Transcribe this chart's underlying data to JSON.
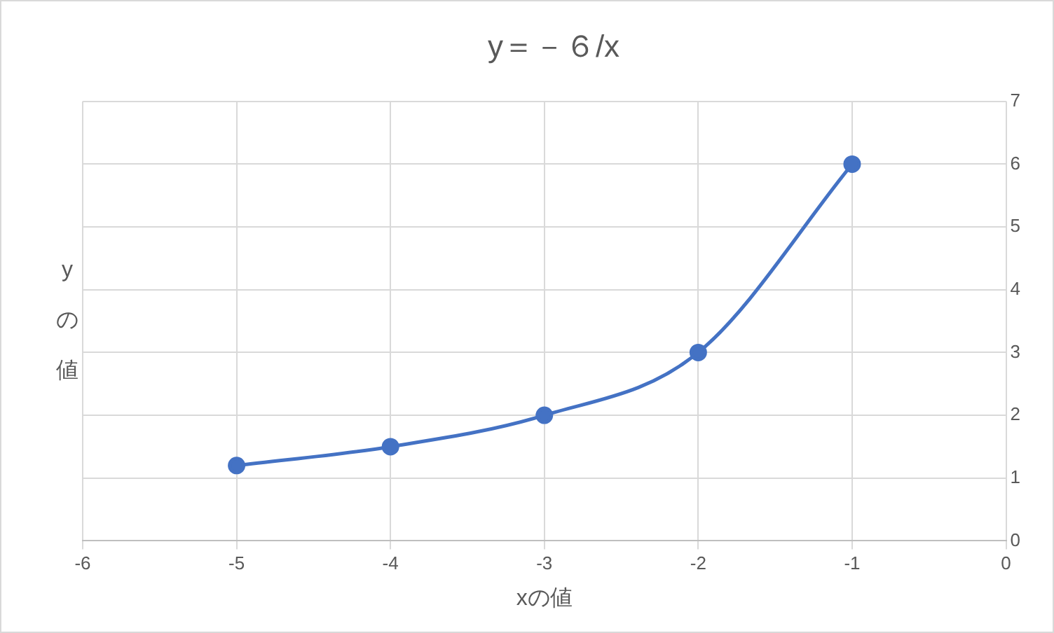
{
  "chart_data": {
    "type": "line",
    "title": "y＝－６/x",
    "xlabel": "xの値",
    "ylabel": "yの値",
    "x": [
      -5,
      -4,
      -3,
      -2,
      -1
    ],
    "series": [
      {
        "color": "#4472c4",
        "values": [
          1.2,
          1.5,
          2,
          3,
          6
        ]
      }
    ],
    "xlim": [
      -6,
      0
    ],
    "xticks": [
      -6,
      -5,
      -4,
      -3,
      -2,
      -1,
      0
    ],
    "ylim": [
      0,
      7
    ],
    "yticks": [
      0,
      1,
      2,
      3,
      4,
      5,
      6,
      7
    ],
    "grid": true,
    "legend": false,
    "marker": "circle",
    "line_style": "solid"
  }
}
